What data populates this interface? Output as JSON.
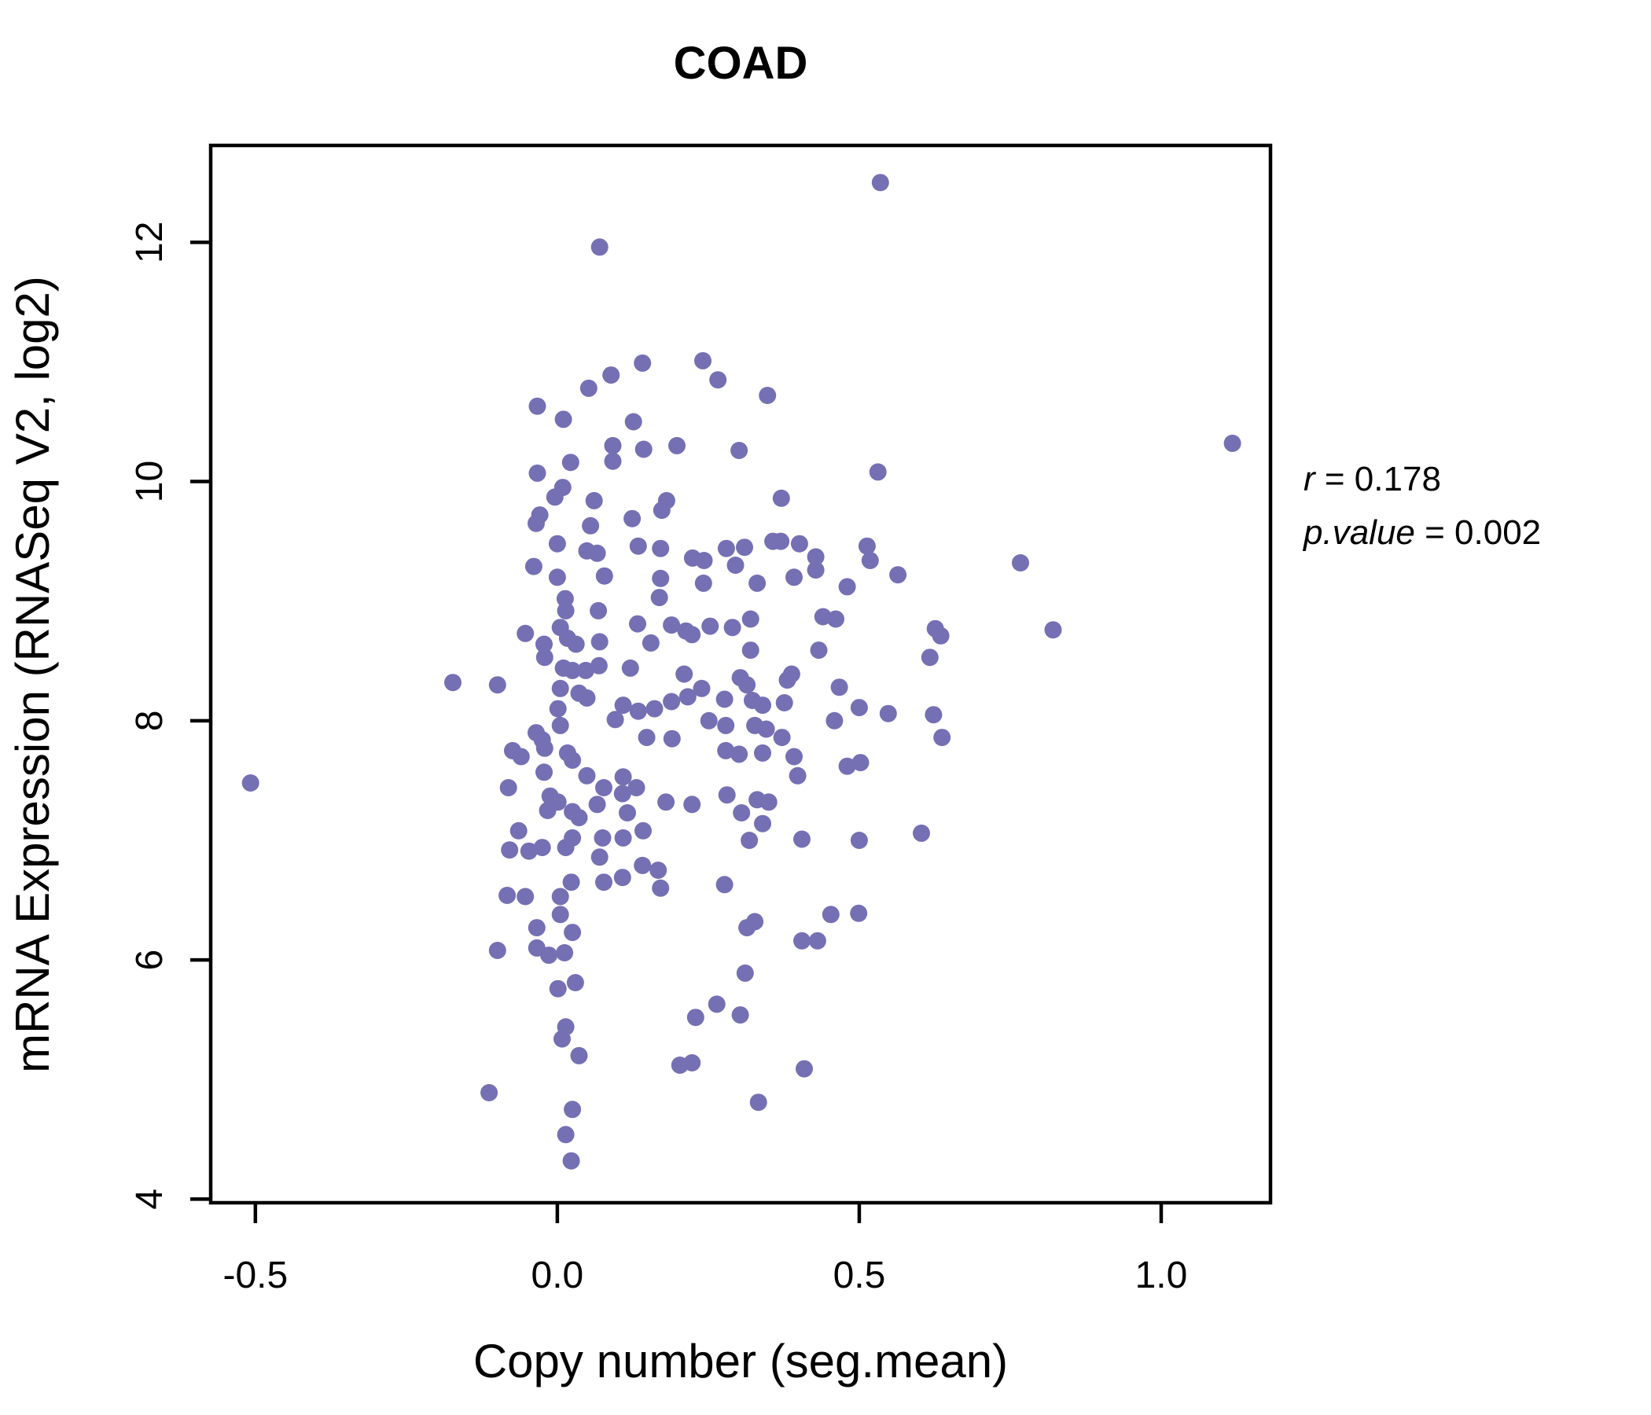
{
  "title": {
    "text": "COAD",
    "color": "#7570b3"
  },
  "annotation": {
    "r_var": "r",
    "r_rest": " = 0.178",
    "p_var": "p.value",
    "p_rest": " = 0.002"
  },
  "chart_data": {
    "type": "scatter",
    "title": "COAD",
    "xlabel": "Copy number (seg.mean)",
    "ylabel": "mRNA Expression (RNASeq V2, log2)",
    "xlim": [
      -0.574,
      1.181
    ],
    "ylim": [
      3.97,
      12.81
    ],
    "x_ticks": [
      -0.5,
      0.0,
      0.5,
      1.0
    ],
    "x_tick_labels": [
      "-0.5",
      "0.0",
      "0.5",
      "1.0"
    ],
    "y_ticks": [
      4,
      6,
      8,
      10,
      12
    ],
    "y_tick_labels": [
      "4",
      "6",
      "8",
      "10",
      "12"
    ],
    "grid": false,
    "point_color": "#7570b3",
    "point_radius_px": 11,
    "correlation_r": 0.178,
    "p_value": 0.002,
    "points": [
      [
        0.07,
        11.96
      ],
      [
        0.141,
        10.99
      ],
      [
        0.089,
        10.89
      ],
      [
        0.052,
        10.78
      ],
      [
        -0.033,
        10.63
      ],
      [
        0.01,
        10.52
      ],
      [
        0.126,
        10.5
      ],
      [
        0.092,
        10.3
      ],
      [
        0.143,
        10.27
      ],
      [
        0.198,
        10.3
      ],
      [
        0.092,
        10.17
      ],
      [
        0.022,
        10.16
      ],
      [
        -0.033,
        10.07
      ],
      [
        0.009,
        9.95
      ],
      [
        -0.004,
        9.87
      ],
      [
        0.061,
        9.84
      ],
      [
        0.181,
        9.84
      ],
      [
        0.173,
        9.76
      ],
      [
        -0.029,
        9.72
      ],
      [
        -0.035,
        9.65
      ],
      [
        0.055,
        9.63
      ],
      [
        0.124,
        9.69
      ],
      [
        0.0,
        9.48
      ],
      [
        0.049,
        9.42
      ],
      [
        0.066,
        9.4
      ],
      [
        0.134,
        9.46
      ],
      [
        0.171,
        9.44
      ],
      [
        -0.039,
        9.29
      ],
      [
        0.241,
        11.01
      ],
      [
        0.266,
        10.85
      ],
      [
        0.348,
        10.72
      ],
      [
        0.301,
        10.26
      ],
      [
        0.531,
        10.08
      ],
      [
        0.371,
        9.86
      ],
      [
        0.357,
        9.5
      ],
      [
        0.37,
        9.5
      ],
      [
        0.401,
        9.48
      ],
      [
        0.28,
        9.44
      ],
      [
        0.31,
        9.45
      ],
      [
        0.513,
        9.46
      ],
      [
        0.428,
        9.37
      ],
      [
        0.518,
        9.34
      ],
      [
        0.224,
        9.36
      ],
      [
        0.243,
        9.34
      ],
      [
        0.767,
        9.32
      ],
      [
        0.295,
        9.3
      ],
      [
        0.535,
        12.5
      ],
      [
        0.0,
        9.2
      ],
      [
        0.078,
        9.21
      ],
      [
        0.171,
        9.19
      ],
      [
        0.013,
        9.02
      ],
      [
        0.169,
        9.03
      ],
      [
        0.014,
        8.92
      ],
      [
        0.068,
        8.92
      ],
      [
        0.133,
        8.81
      ],
      [
        0.189,
        8.8
      ],
      [
        -0.053,
        8.73
      ],
      [
        0.005,
        8.78
      ],
      [
        0.017,
        8.69
      ],
      [
        -0.022,
        8.64
      ],
      [
        0.031,
        8.64
      ],
      [
        0.07,
        8.66
      ],
      [
        0.155,
        8.65
      ],
      [
        -0.021,
        8.53
      ],
      [
        0.01,
        8.44
      ],
      [
        0.025,
        8.42
      ],
      [
        0.047,
        8.42
      ],
      [
        0.069,
        8.46
      ],
      [
        0.121,
        8.44
      ],
      [
        -0.173,
        8.32
      ],
      [
        -0.099,
        8.3
      ],
      [
        0.005,
        8.27
      ],
      [
        0.036,
        8.23
      ],
      [
        0.049,
        8.19
      ],
      [
        0.001,
        8.1
      ],
      [
        0.109,
        8.13
      ],
      [
        0.134,
        8.08
      ],
      [
        0.096,
        8.01
      ],
      [
        0.161,
        8.1
      ],
      [
        0.189,
        8.16
      ],
      [
        0.005,
        7.96
      ],
      [
        -0.035,
        7.9
      ],
      [
        -0.025,
        7.84
      ],
      [
        0.148,
        7.86
      ],
      [
        0.19,
        7.85
      ],
      [
        -0.074,
        7.75
      ],
      [
        -0.06,
        7.7
      ],
      [
        -0.021,
        7.77
      ],
      [
        0.017,
        7.73
      ],
      [
        0.025,
        7.67
      ],
      [
        -0.022,
        7.57
      ],
      [
        0.049,
        7.54
      ],
      [
        0.109,
        7.53
      ],
      [
        -0.081,
        7.44
      ],
      [
        0.077,
        7.44
      ],
      [
        0.131,
        7.44
      ],
      [
        0.108,
        7.39
      ],
      [
        0.18,
        7.32
      ],
      [
        -0.012,
        7.37
      ],
      [
        0.001,
        7.32
      ],
      [
        0.066,
        7.3
      ],
      [
        0.025,
        7.24
      ],
      [
        0.036,
        7.19
      ],
      [
        -0.016,
        7.25
      ],
      [
        0.116,
        7.23
      ],
      [
        -0.064,
        7.08
      ],
      [
        0.075,
        7.02
      ],
      [
        0.109,
        7.02
      ],
      [
        0.142,
        7.08
      ],
      [
        -0.079,
        6.92
      ],
      [
        -0.047,
        6.91
      ],
      [
        -0.025,
        6.94
      ],
      [
        0.014,
        6.94
      ],
      [
        0.025,
        7.02
      ],
      [
        0.07,
        6.86
      ],
      [
        0.141,
        6.79
      ],
      [
        0.167,
        6.75
      ],
      [
        0.023,
        6.65
      ],
      [
        0.077,
        6.65
      ],
      [
        0.108,
        6.69
      ],
      [
        0.171,
        6.6
      ],
      [
        0.242,
        9.15
      ],
      [
        0.331,
        9.15
      ],
      [
        0.392,
        9.2
      ],
      [
        0.428,
        9.26
      ],
      [
        0.48,
        9.12
      ],
      [
        0.564,
        9.22
      ],
      [
        0.32,
        8.85
      ],
      [
        0.44,
        8.87
      ],
      [
        0.461,
        8.85
      ],
      [
        0.253,
        8.79
      ],
      [
        0.29,
        8.78
      ],
      [
        0.223,
        8.72
      ],
      [
        0.213,
        8.75
      ],
      [
        0.626,
        8.77
      ],
      [
        0.635,
        8.71
      ],
      [
        0.32,
        8.59
      ],
      [
        0.433,
        8.59
      ],
      [
        0.617,
        8.53
      ],
      [
        0.21,
        8.39
      ],
      [
        0.303,
        8.36
      ],
      [
        0.381,
        8.34
      ],
      [
        0.388,
        8.39
      ],
      [
        0.239,
        8.27
      ],
      [
        0.216,
        8.2
      ],
      [
        0.277,
        8.18
      ],
      [
        0.314,
        8.3
      ],
      [
        0.323,
        8.17
      ],
      [
        0.34,
        8.13
      ],
      [
        0.376,
        8.15
      ],
      [
        0.467,
        8.28
      ],
      [
        0.5,
        8.11
      ],
      [
        0.251,
        8.0
      ],
      [
        0.279,
        7.96
      ],
      [
        0.327,
        7.96
      ],
      [
        0.346,
        7.93
      ],
      [
        0.459,
        8.0
      ],
      [
        0.548,
        8.06
      ],
      [
        0.623,
        8.05
      ],
      [
        0.372,
        7.86
      ],
      [
        0.637,
        7.86
      ],
      [
        0.279,
        7.75
      ],
      [
        0.301,
        7.72
      ],
      [
        0.34,
        7.73
      ],
      [
        0.392,
        7.7
      ],
      [
        0.48,
        7.62
      ],
      [
        0.502,
        7.65
      ],
      [
        0.398,
        7.54
      ],
      [
        0.281,
        7.38
      ],
      [
        0.331,
        7.34
      ],
      [
        0.35,
        7.32
      ],
      [
        0.305,
        7.23
      ],
      [
        0.34,
        7.14
      ],
      [
        0.223,
        7.3
      ],
      [
        0.318,
        7.0
      ],
      [
        0.405,
        7.01
      ],
      [
        0.5,
        7.0
      ],
      [
        0.603,
        7.06
      ],
      [
        0.277,
        6.63
      ],
      [
        1.118,
        10.32
      ],
      [
        0.821,
        8.76
      ],
      [
        -0.083,
        6.54
      ],
      [
        -0.053,
        6.53
      ],
      [
        0.005,
        6.53
      ],
      [
        0.005,
        6.38
      ],
      [
        -0.034,
        6.27
      ],
      [
        0.025,
        6.23
      ],
      [
        -0.099,
        6.08
      ],
      [
        -0.034,
        6.1
      ],
      [
        -0.014,
        6.04
      ],
      [
        0.012,
        6.06
      ],
      [
        0.001,
        5.76
      ],
      [
        0.03,
        5.81
      ],
      [
        0.014,
        5.44
      ],
      [
        0.008,
        5.34
      ],
      [
        0.036,
        5.2
      ],
      [
        -0.113,
        4.89
      ],
      [
        0.025,
        4.75
      ],
      [
        0.014,
        4.54
      ],
      [
        0.023,
        4.32
      ],
      [
        0.314,
        6.27
      ],
      [
        0.327,
        6.32
      ],
      [
        0.453,
        6.38
      ],
      [
        0.499,
        6.39
      ],
      [
        0.405,
        6.16
      ],
      [
        0.431,
        6.16
      ],
      [
        0.311,
        5.89
      ],
      [
        0.264,
        5.63
      ],
      [
        0.229,
        5.52
      ],
      [
        0.303,
        5.54
      ],
      [
        0.203,
        5.12
      ],
      [
        0.223,
        5.14
      ],
      [
        0.409,
        5.09
      ],
      [
        0.333,
        4.81
      ],
      [
        -0.508,
        7.48
      ]
    ]
  }
}
